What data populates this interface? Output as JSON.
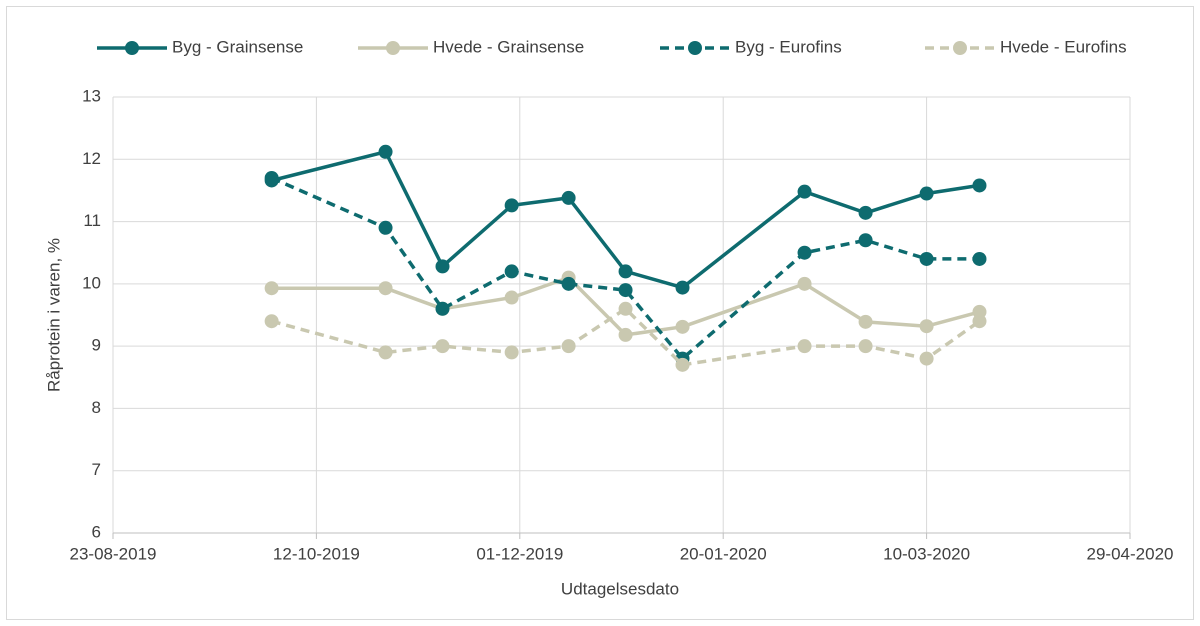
{
  "chart_data": {
    "type": "line",
    "x_label": "Udtagelsesdato",
    "y_label": "Råprotein i varen, %",
    "x": [
      "01-10-2019",
      "29-10-2019",
      "12-11-2019",
      "29-11-2019",
      "13-12-2019",
      "27-12-2019",
      "10-01-2020",
      "09-02-2020",
      "24-02-2020",
      "10-03-2020",
      "23-03-2020"
    ],
    "series": [
      {
        "name": "Byg - Grainsense",
        "color": "#0e6b6f",
        "dashed": false,
        "values": [
          11.66,
          12.12,
          10.28,
          11.26,
          11.38,
          10.2,
          9.94,
          11.48,
          11.14,
          11.45,
          11.58
        ]
      },
      {
        "name": "Hvede - Grainsense",
        "color": "#c9c8b0",
        "dashed": false,
        "values": [
          9.93,
          9.93,
          9.6,
          9.78,
          10.1,
          9.18,
          9.31,
          10.0,
          9.39,
          9.32,
          9.55
        ]
      },
      {
        "name": "Byg - Eurofins",
        "color": "#0e6b6f",
        "dashed": true,
        "values": [
          11.7,
          10.9,
          9.6,
          10.2,
          10.0,
          9.9,
          8.8,
          10.5,
          10.7,
          10.4,
          10.4
        ]
      },
      {
        "name": "Hvede - Eurofins",
        "color": "#c9c8b0",
        "dashed": true,
        "values": [
          9.4,
          8.9,
          9.0,
          8.9,
          9.0,
          9.6,
          8.7,
          9.0,
          9.0,
          8.8,
          9.4
        ]
      }
    ],
    "xlim": [
      "23-08-2019",
      "29-04-2020"
    ],
    "xticks": [
      "23-08-2019",
      "12-10-2019",
      "01-12-2019",
      "20-01-2020",
      "10-03-2020",
      "29-04-2020"
    ],
    "ylim": [
      6,
      13
    ],
    "yticks": [
      6,
      7,
      8,
      9,
      10,
      11,
      12,
      13
    ],
    "grid": true,
    "legend": "top"
  }
}
